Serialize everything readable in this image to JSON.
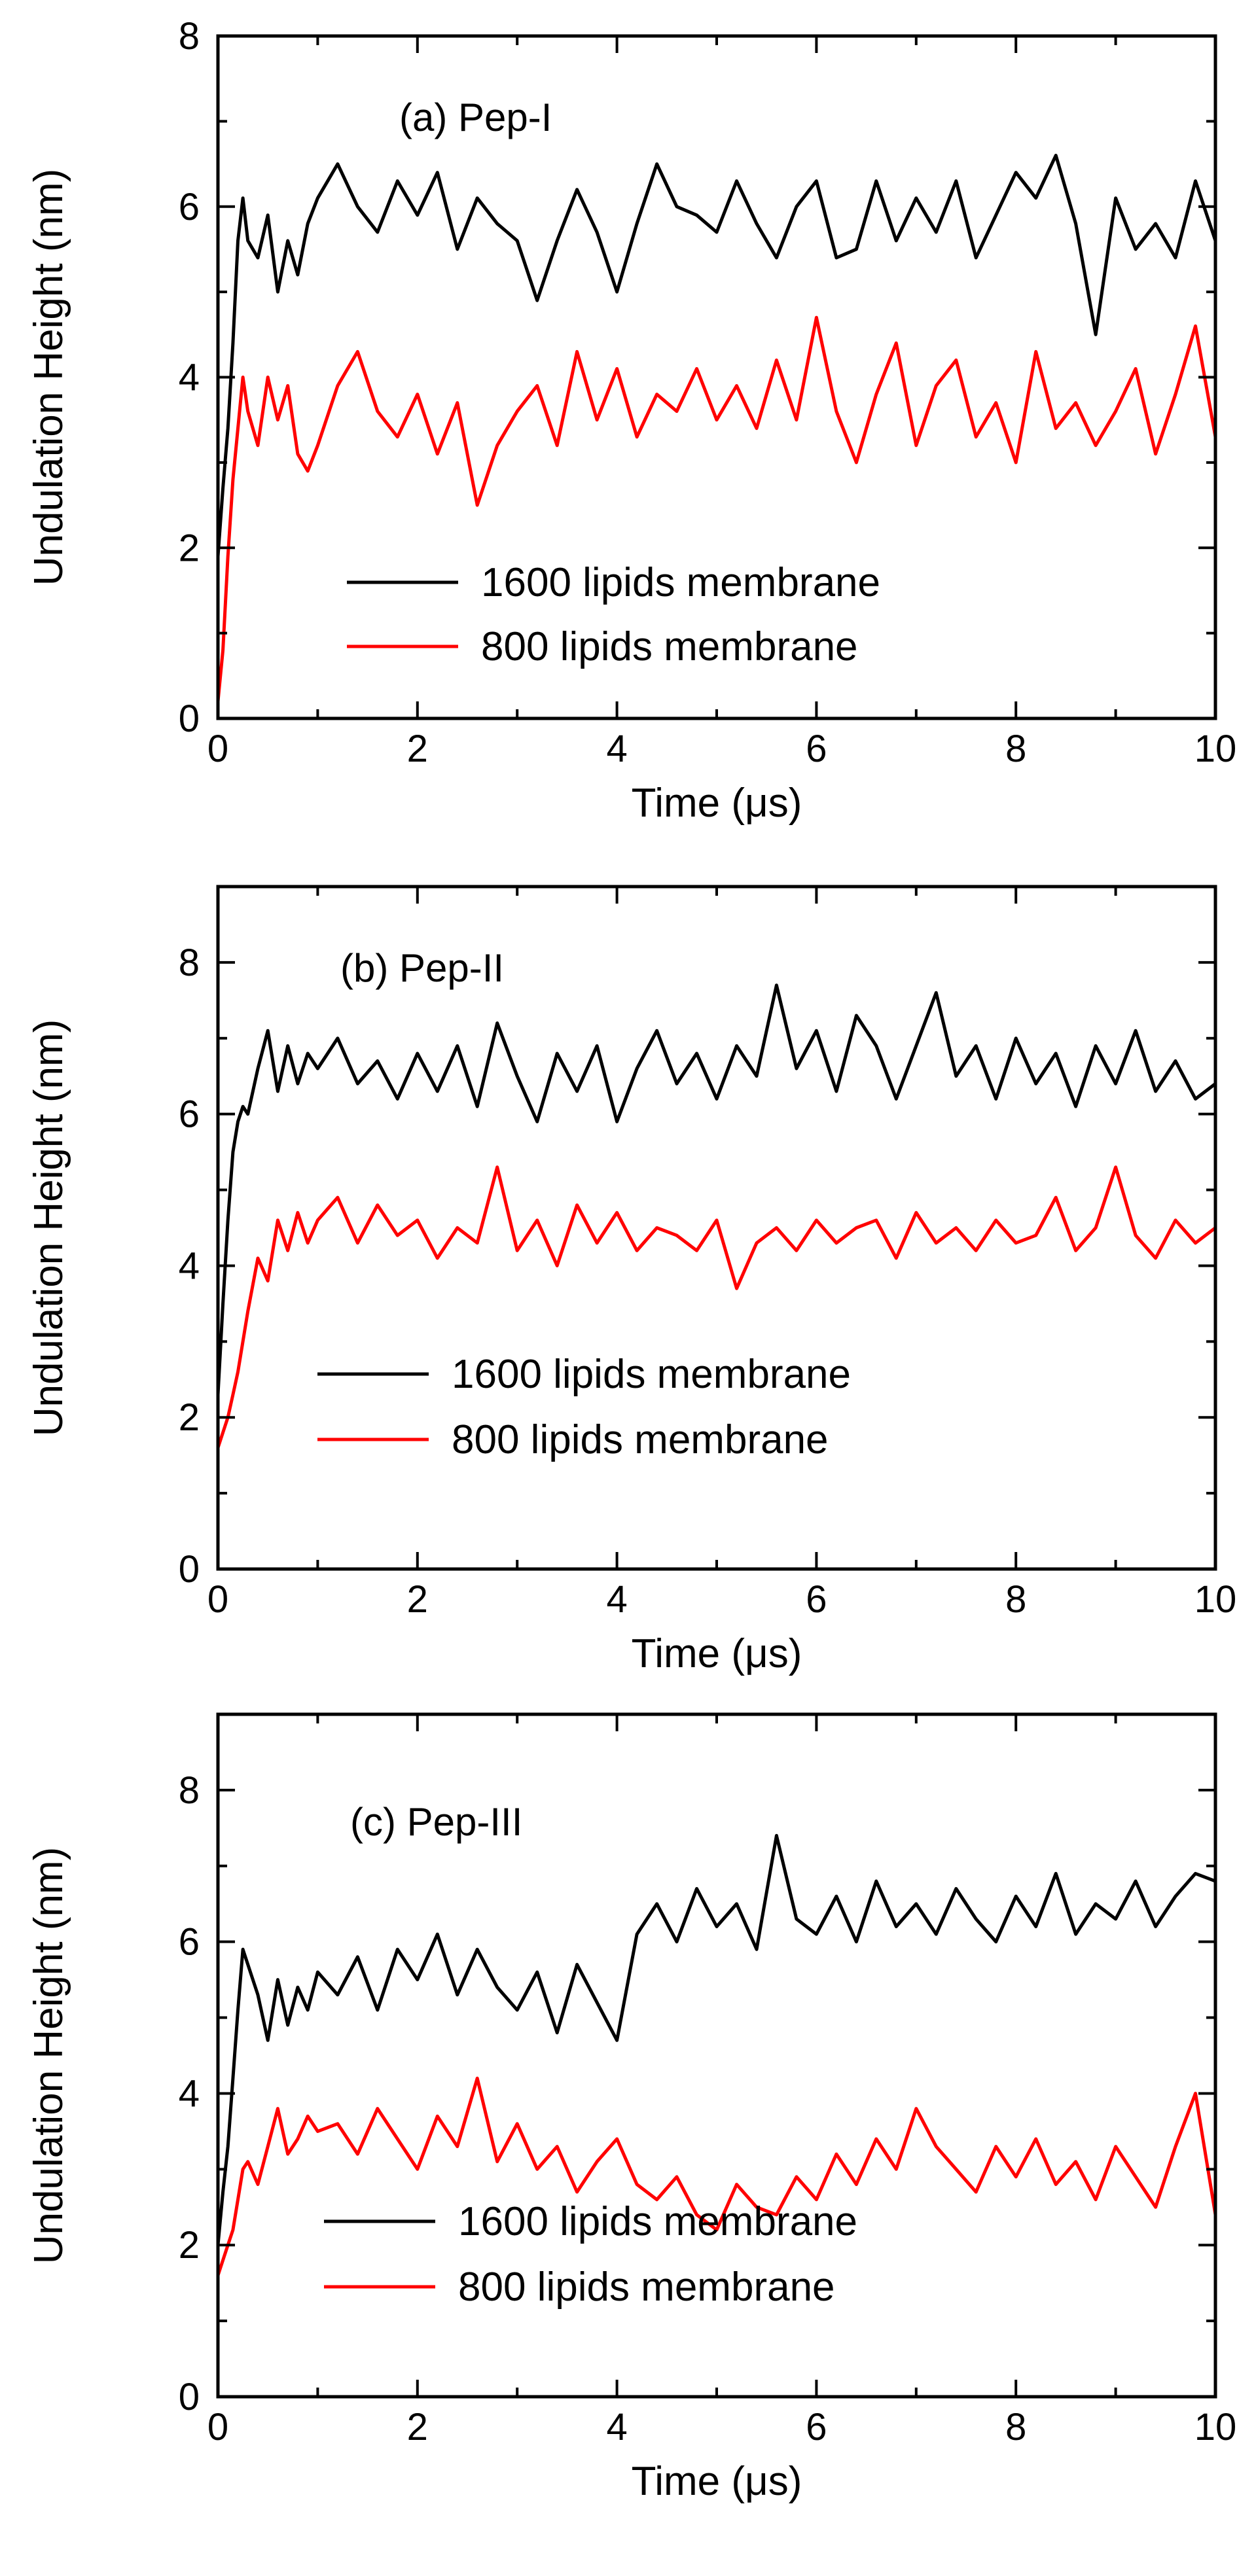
{
  "figure": {
    "description_note": "Three stacked time-series panels of membrane undulation height"
  },
  "chart_data": [
    {
      "type": "line",
      "panel_label": "(a) Pep-I",
      "xlabel": "Time (μs)",
      "ylabel": "Undulation Height (nm)",
      "xlim": [
        0,
        10
      ],
      "ylim": [
        0,
        8
      ],
      "xticks": [
        0,
        2,
        4,
        6,
        8,
        10
      ],
      "yticks": [
        0,
        2,
        4,
        6,
        8
      ],
      "grid": false,
      "legend_position": "lower-right",
      "series": [
        {
          "name": "1600 lipids membrane",
          "color": "#000000",
          "x": [
            0,
            0.05,
            0.1,
            0.15,
            0.2,
            0.25,
            0.3,
            0.4,
            0.5,
            0.6,
            0.7,
            0.8,
            0.9,
            1.0,
            1.2,
            1.4,
            1.6,
            1.8,
            2.0,
            2.2,
            2.4,
            2.6,
            2.8,
            3.0,
            3.2,
            3.4,
            3.6,
            3.8,
            4.0,
            4.2,
            4.4,
            4.6,
            4.8,
            5.0,
            5.2,
            5.4,
            5.6,
            5.8,
            6.0,
            6.2,
            6.4,
            6.6,
            6.8,
            7.0,
            7.2,
            7.4,
            7.6,
            7.8,
            8.0,
            8.2,
            8.4,
            8.6,
            8.8,
            9.0,
            9.2,
            9.4,
            9.6,
            9.8,
            10.0
          ],
          "y": [
            1.9,
            2.7,
            3.4,
            4.4,
            5.6,
            6.1,
            5.6,
            5.4,
            5.9,
            5.0,
            5.6,
            5.2,
            5.8,
            6.1,
            6.5,
            6.0,
            5.7,
            6.3,
            5.9,
            6.4,
            5.5,
            6.1,
            5.8,
            5.6,
            4.9,
            5.6,
            6.2,
            5.7,
            5.0,
            5.8,
            6.5,
            6.0,
            5.9,
            5.7,
            6.3,
            5.8,
            5.4,
            6.0,
            6.3,
            5.4,
            5.5,
            6.3,
            5.6,
            6.1,
            5.7,
            6.3,
            5.4,
            5.9,
            6.4,
            6.1,
            6.6,
            5.8,
            4.5,
            6.1,
            5.5,
            5.8,
            5.4,
            6.3,
            5.6
          ]
        },
        {
          "name": "800 lipids membrane",
          "color": "#ff0000",
          "x": [
            0,
            0.05,
            0.1,
            0.15,
            0.2,
            0.25,
            0.3,
            0.4,
            0.5,
            0.6,
            0.7,
            0.8,
            0.9,
            1.0,
            1.2,
            1.4,
            1.6,
            1.8,
            2.0,
            2.2,
            2.4,
            2.6,
            2.8,
            3.0,
            3.2,
            3.4,
            3.6,
            3.8,
            4.0,
            4.2,
            4.4,
            4.6,
            4.8,
            5.0,
            5.2,
            5.4,
            5.6,
            5.8,
            6.0,
            6.2,
            6.4,
            6.6,
            6.8,
            7.0,
            7.2,
            7.4,
            7.6,
            7.8,
            8.0,
            8.2,
            8.4,
            8.6,
            8.8,
            9.0,
            9.2,
            9.4,
            9.6,
            9.8,
            10.0
          ],
          "y": [
            0.2,
            0.8,
            1.9,
            2.8,
            3.4,
            4.0,
            3.6,
            3.2,
            4.0,
            3.5,
            3.9,
            3.1,
            2.9,
            3.2,
            3.9,
            4.3,
            3.6,
            3.3,
            3.8,
            3.1,
            3.7,
            2.5,
            3.2,
            3.6,
            3.9,
            3.2,
            4.3,
            3.5,
            4.1,
            3.3,
            3.8,
            3.6,
            4.1,
            3.5,
            3.9,
            3.4,
            4.2,
            3.5,
            4.7,
            3.6,
            3.0,
            3.8,
            4.4,
            3.2,
            3.9,
            4.2,
            3.3,
            3.7,
            3.0,
            4.3,
            3.4,
            3.7,
            3.2,
            3.6,
            4.1,
            3.1,
            3.8,
            4.6,
            3.3
          ]
        }
      ]
    },
    {
      "type": "line",
      "panel_label": "(b) Pep-II",
      "xlabel": "Time (μs)",
      "ylabel": "Undulation Height (nm)",
      "xlim": [
        0,
        10
      ],
      "ylim": [
        0,
        9
      ],
      "xticks": [
        0,
        2,
        4,
        6,
        8,
        10
      ],
      "yticks": [
        0,
        2,
        4,
        6,
        8
      ],
      "grid": false,
      "legend_position": "lower-right",
      "series": [
        {
          "name": "1600 lipids membrane",
          "color": "#000000",
          "x": [
            0,
            0.05,
            0.1,
            0.15,
            0.2,
            0.25,
            0.3,
            0.4,
            0.5,
            0.6,
            0.7,
            0.8,
            0.9,
            1.0,
            1.2,
            1.4,
            1.6,
            1.8,
            2.0,
            2.2,
            2.4,
            2.6,
            2.8,
            3.0,
            3.2,
            3.4,
            3.6,
            3.8,
            4.0,
            4.2,
            4.4,
            4.6,
            4.8,
            5.0,
            5.2,
            5.4,
            5.6,
            5.8,
            6.0,
            6.2,
            6.4,
            6.6,
            6.8,
            7.0,
            7.2,
            7.4,
            7.6,
            7.8,
            8.0,
            8.2,
            8.4,
            8.6,
            8.8,
            9.0,
            9.2,
            9.4,
            9.6,
            9.8,
            10.0
          ],
          "y": [
            2.3,
            3.5,
            4.6,
            5.5,
            5.9,
            6.1,
            6.0,
            6.6,
            7.1,
            6.3,
            6.9,
            6.4,
            6.8,
            6.6,
            7.0,
            6.4,
            6.7,
            6.2,
            6.8,
            6.3,
            6.9,
            6.1,
            7.2,
            6.5,
            5.9,
            6.8,
            6.3,
            6.9,
            5.9,
            6.6,
            7.1,
            6.4,
            6.8,
            6.2,
            6.9,
            6.5,
            7.7,
            6.6,
            7.1,
            6.3,
            7.3,
            6.9,
            6.2,
            6.9,
            7.6,
            6.5,
            6.9,
            6.2,
            7.0,
            6.4,
            6.8,
            6.1,
            6.9,
            6.4,
            7.1,
            6.3,
            6.7,
            6.2,
            6.4
          ]
        },
        {
          "name": "800 lipids membrane",
          "color": "#ff0000",
          "x": [
            0,
            0.05,
            0.1,
            0.15,
            0.2,
            0.25,
            0.3,
            0.4,
            0.5,
            0.6,
            0.7,
            0.8,
            0.9,
            1.0,
            1.2,
            1.4,
            1.6,
            1.8,
            2.0,
            2.2,
            2.4,
            2.6,
            2.8,
            3.0,
            3.2,
            3.4,
            3.6,
            3.8,
            4.0,
            4.2,
            4.4,
            4.6,
            4.8,
            5.0,
            5.2,
            5.4,
            5.6,
            5.8,
            6.0,
            6.2,
            6.4,
            6.6,
            6.8,
            7.0,
            7.2,
            7.4,
            7.6,
            7.8,
            8.0,
            8.2,
            8.4,
            8.6,
            8.8,
            9.0,
            9.2,
            9.4,
            9.6,
            9.8,
            10.0
          ],
          "y": [
            1.6,
            1.8,
            2.0,
            2.3,
            2.6,
            3.0,
            3.4,
            4.1,
            3.8,
            4.6,
            4.2,
            4.7,
            4.3,
            4.6,
            4.9,
            4.3,
            4.8,
            4.4,
            4.6,
            4.1,
            4.5,
            4.3,
            5.3,
            4.2,
            4.6,
            4.0,
            4.8,
            4.3,
            4.7,
            4.2,
            4.5,
            4.4,
            4.2,
            4.6,
            3.7,
            4.3,
            4.5,
            4.2,
            4.6,
            4.3,
            4.5,
            4.6,
            4.1,
            4.7,
            4.3,
            4.5,
            4.2,
            4.6,
            4.3,
            4.4,
            4.9,
            4.2,
            4.5,
            5.3,
            4.4,
            4.1,
            4.6,
            4.3,
            4.5
          ]
        }
      ]
    },
    {
      "type": "line",
      "panel_label": "(c) Pep-III",
      "xlabel": "Time (μs)",
      "ylabel": "Undulation Height (nm)",
      "xlim": [
        0,
        10
      ],
      "ylim": [
        0,
        9
      ],
      "xticks": [
        0,
        2,
        4,
        6,
        8,
        10
      ],
      "yticks": [
        0,
        2,
        4,
        6,
        8
      ],
      "grid": false,
      "legend_position": "lower-right",
      "series": [
        {
          "name": "1600 lipids membrane",
          "color": "#000000",
          "x": [
            0,
            0.05,
            0.1,
            0.15,
            0.2,
            0.25,
            0.3,
            0.4,
            0.5,
            0.6,
            0.7,
            0.8,
            0.9,
            1.0,
            1.2,
            1.4,
            1.6,
            1.8,
            2.0,
            2.2,
            2.4,
            2.6,
            2.8,
            3.0,
            3.2,
            3.4,
            3.6,
            3.8,
            4.0,
            4.2,
            4.4,
            4.6,
            4.8,
            5.0,
            5.2,
            5.4,
            5.6,
            5.8,
            6.0,
            6.2,
            6.4,
            6.6,
            6.8,
            7.0,
            7.2,
            7.4,
            7.6,
            7.8,
            8.0,
            8.2,
            8.4,
            8.6,
            8.8,
            9.0,
            9.2,
            9.4,
            9.6,
            9.8,
            10.0
          ],
          "y": [
            2.0,
            2.7,
            3.3,
            4.2,
            5.1,
            5.9,
            5.7,
            5.3,
            4.7,
            5.5,
            4.9,
            5.4,
            5.1,
            5.6,
            5.3,
            5.8,
            5.1,
            5.9,
            5.5,
            6.1,
            5.3,
            5.9,
            5.4,
            5.1,
            5.6,
            4.8,
            5.7,
            5.2,
            4.7,
            6.1,
            6.5,
            6.0,
            6.7,
            6.2,
            6.5,
            5.9,
            7.4,
            6.3,
            6.1,
            6.6,
            6.0,
            6.8,
            6.2,
            6.5,
            6.1,
            6.7,
            6.3,
            6.0,
            6.6,
            6.2,
            6.9,
            6.1,
            6.5,
            6.3,
            6.8,
            6.2,
            6.6,
            6.9,
            6.8
          ]
        },
        {
          "name": "800 lipids membrane",
          "color": "#ff0000",
          "x": [
            0,
            0.05,
            0.1,
            0.15,
            0.2,
            0.25,
            0.3,
            0.4,
            0.5,
            0.6,
            0.7,
            0.8,
            0.9,
            1.0,
            1.2,
            1.4,
            1.6,
            1.8,
            2.0,
            2.2,
            2.4,
            2.6,
            2.8,
            3.0,
            3.2,
            3.4,
            3.6,
            3.8,
            4.0,
            4.2,
            4.4,
            4.6,
            4.8,
            5.0,
            5.2,
            5.4,
            5.6,
            5.8,
            6.0,
            6.2,
            6.4,
            6.6,
            6.8,
            7.0,
            7.2,
            7.4,
            7.6,
            7.8,
            8.0,
            8.2,
            8.4,
            8.6,
            8.8,
            9.0,
            9.2,
            9.4,
            9.6,
            9.8,
            10.0
          ],
          "y": [
            1.6,
            1.8,
            2.0,
            2.2,
            2.6,
            3.0,
            3.1,
            2.8,
            3.3,
            3.8,
            3.2,
            3.4,
            3.7,
            3.5,
            3.6,
            3.2,
            3.8,
            3.4,
            3.0,
            3.7,
            3.3,
            4.2,
            3.1,
            3.6,
            3.0,
            3.3,
            2.7,
            3.1,
            3.4,
            2.8,
            2.6,
            2.9,
            2.4,
            2.2,
            2.8,
            2.5,
            2.4,
            2.9,
            2.6,
            3.2,
            2.8,
            3.4,
            3.0,
            3.8,
            3.3,
            3.0,
            2.7,
            3.3,
            2.9,
            3.4,
            2.8,
            3.1,
            2.6,
            3.3,
            2.9,
            2.5,
            3.3,
            4.0,
            2.4
          ]
        }
      ]
    }
  ]
}
